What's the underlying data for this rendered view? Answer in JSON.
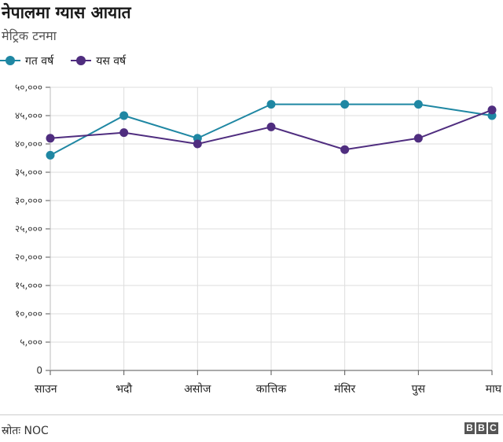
{
  "chart_data": {
    "type": "line",
    "title": "नेपालमा ग्यास आयात",
    "subtitle": "मेट्रिक टनमा",
    "categories": [
      "साउन",
      "भदौ",
      "असोज",
      "कात्तिक",
      "मंसिर",
      "पुस",
      "माघ"
    ],
    "series": [
      {
        "name": "गत वर्ष",
        "color": "#1f87a3",
        "values": [
          38000,
          45000,
          41000,
          47000,
          47000,
          47000,
          45000
        ]
      },
      {
        "name": "यस वर्ष",
        "color": "#4f2d7f",
        "values": [
          41000,
          42000,
          40000,
          43000,
          39000,
          41000,
          46000
        ]
      }
    ],
    "y_ticks": [
      {
        "value": 0,
        "label": "0"
      },
      {
        "value": 5000,
        "label": "५,०००"
      },
      {
        "value": 10000,
        "label": "१०,०००"
      },
      {
        "value": 15000,
        "label": "१५,०००"
      },
      {
        "value": 20000,
        "label": "२०,०००"
      },
      {
        "value": 25000,
        "label": "२५,०००"
      },
      {
        "value": 30000,
        "label": "३०,०००"
      },
      {
        "value": 35000,
        "label": "३५,०००"
      },
      {
        "value": 40000,
        "label": "४०,०००"
      },
      {
        "value": 45000,
        "label": "४५,०००"
      },
      {
        "value": 50000,
        "label": "५०,०००"
      }
    ],
    "ylim": [
      0,
      50000
    ],
    "grid": true,
    "legend_position": "top-left"
  },
  "source": "स्रोतः NOC",
  "logo": [
    "B",
    "B",
    "C"
  ]
}
